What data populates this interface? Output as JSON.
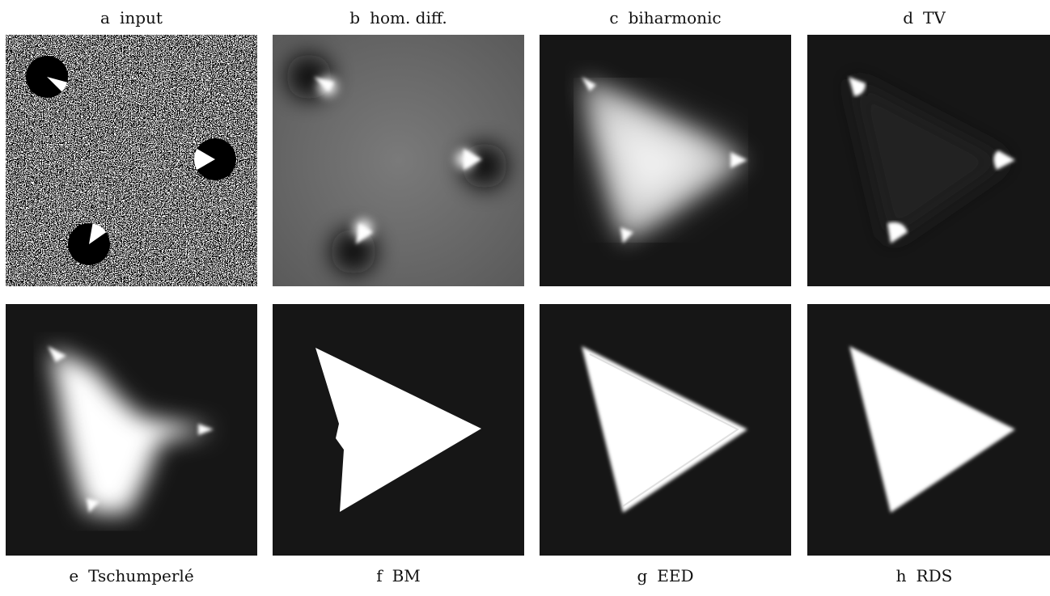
{
  "panels": [
    {
      "letter": "a",
      "label": "input"
    },
    {
      "letter": "b",
      "label": "hom. diff."
    },
    {
      "letter": "c",
      "label": "biharmonic"
    },
    {
      "letter": "d",
      "label": "TV"
    },
    {
      "letter": "e",
      "label": "Tschumperlé"
    },
    {
      "letter": "f",
      "label": "BM"
    },
    {
      "letter": "g",
      "label": "EED"
    },
    {
      "letter": "h",
      "label": "RDS"
    }
  ]
}
